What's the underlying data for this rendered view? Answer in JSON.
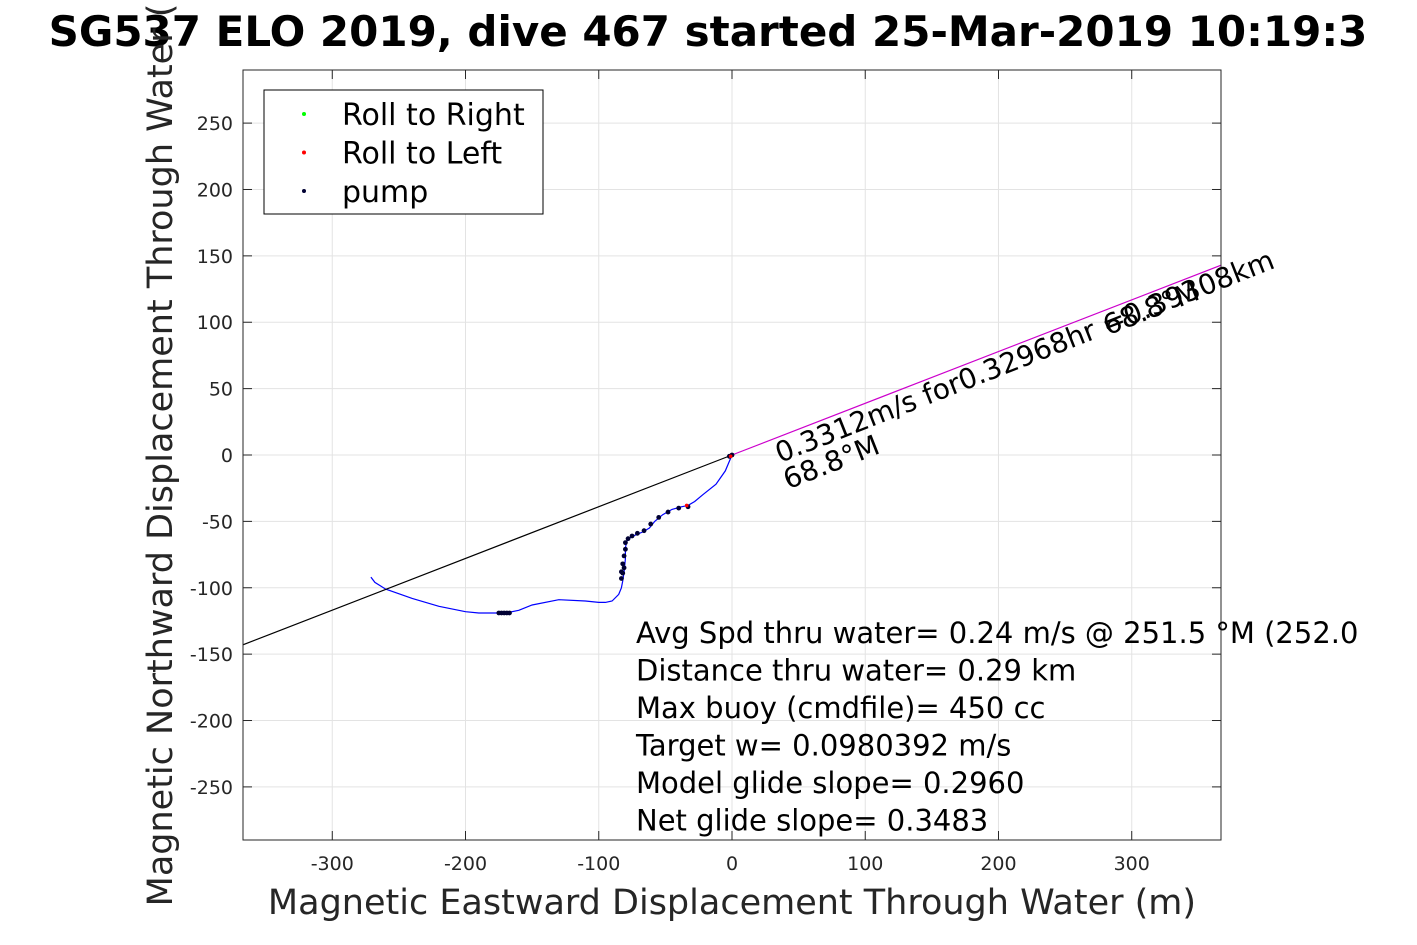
{
  "chart_data": {
    "type": "line",
    "title": "SG537 ELO 2019, dive 467 started 25-Mar-2019 10:19:3",
    "xlabel": "Magnetic Eastward Displacement Through Water (m)",
    "ylabel": "Magnetic Northward Displacement Through Water (",
    "xlim": [
      -367,
      367
    ],
    "ylim": [
      -290,
      290
    ],
    "xticks": [
      -300,
      -200,
      -100,
      0,
      100,
      200,
      300
    ],
    "yticks": [
      250,
      200,
      150,
      100,
      50,
      0,
      -50,
      -100,
      -150,
      -200,
      -250
    ],
    "grid": true,
    "legend_position": "top-left",
    "legend": [
      {
        "label": "Roll to Right",
        "color": "#00ff00"
      },
      {
        "label": "Roll to Left",
        "color": "#ff0000"
      },
      {
        "label": "pump",
        "color": "#000033"
      }
    ],
    "series": [
      {
        "name": "track",
        "color": "#0000ff",
        "x": [
          0,
          -5,
          -12,
          -22,
          -28,
          -33,
          -38,
          -45,
          -52,
          -58,
          -62,
          -67,
          -72,
          -76,
          -79,
          -80,
          -80,
          -81,
          -82,
          -83,
          -85,
          -90,
          -95,
          -100,
          -110,
          -130,
          -150,
          -160,
          -170,
          -180,
          -190,
          -200,
          -220,
          -240,
          -260,
          -268,
          -271
        ],
        "y": [
          0,
          -12,
          -22,
          -30,
          -35,
          -38,
          -39,
          -41,
          -45,
          -50,
          -55,
          -58,
          -60,
          -62,
          -65,
          -70,
          -78,
          -88,
          -95,
          -100,
          -105,
          -110,
          -111,
          -111,
          -110,
          -109,
          -113,
          -117,
          -119,
          -119,
          -119,
          -118,
          -114,
          -108,
          -101,
          -96,
          -92
        ]
      },
      {
        "name": "heading line",
        "color": "#000000",
        "x": [
          0,
          -367
        ],
        "y": [
          0,
          -143
        ]
      },
      {
        "name": "current",
        "color": "#cc00cc",
        "x": [
          0,
          367
        ],
        "y": [
          0,
          143
        ]
      }
    ],
    "pump_points": [
      {
        "x": [
          -33,
          -40,
          -48,
          -55,
          -61,
          -66,
          -71,
          -75,
          -78,
          -80,
          -80,
          -81,
          -82,
          -83,
          -83,
          -82,
          -81
        ],
        "y": [
          -39,
          -40,
          -43,
          -47,
          -52,
          -57,
          -59,
          -61,
          -63,
          -66,
          -71,
          -76,
          -82,
          -88,
          -93,
          -89,
          -85
        ]
      },
      {
        "x": [
          -175,
          -173,
          -171,
          -169,
          -167
        ],
        "y": [
          -119,
          -119,
          -119,
          -119,
          -119
        ]
      },
      {
        "x": [
          -2,
          0
        ],
        "y": [
          -1,
          0
        ]
      }
    ],
    "roll_left_points": {
      "x": [
        -34,
        -1
      ],
      "y": [
        -38,
        -1
      ]
    },
    "annotations": [
      {
        "text": "0.3312m/s for0.32968hr =0.39308km",
        "x": 36,
        "y": -6,
        "angle": -21.5
      },
      {
        "text": "68.8°M",
        "x": 42,
        "y": -26,
        "angle": -21.5
      },
      {
        "text": "68.8°M",
        "x": 282,
        "y": 90,
        "angle": -21.5
      }
    ],
    "stats": [
      "Avg Spd thru water=  0.24 m/s @ 251.5 °M (252.0",
      "Distance thru water=  0.29 km",
      "Max buoy (cmdfile)= 450 cc",
      "Target w= 0.0980392 m/s",
      "Model glide slope= 0.2960",
      "Net glide slope= 0.3483"
    ]
  }
}
